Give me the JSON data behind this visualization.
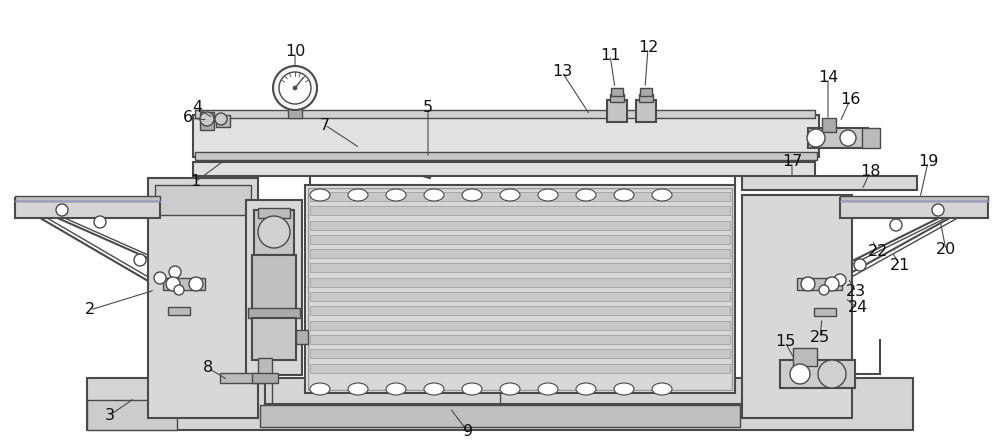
{
  "bg_color": "#ffffff",
  "lc": "#4a4a4a",
  "lc_dark": "#333333",
  "fill_light": "#e8e8e8",
  "fill_mid": "#d0d0d0",
  "fill_dark": "#b8b8b8",
  "fill_frame": "#dcdcdc",
  "label_fontsize": 11.5,
  "label_color": "#111111"
}
